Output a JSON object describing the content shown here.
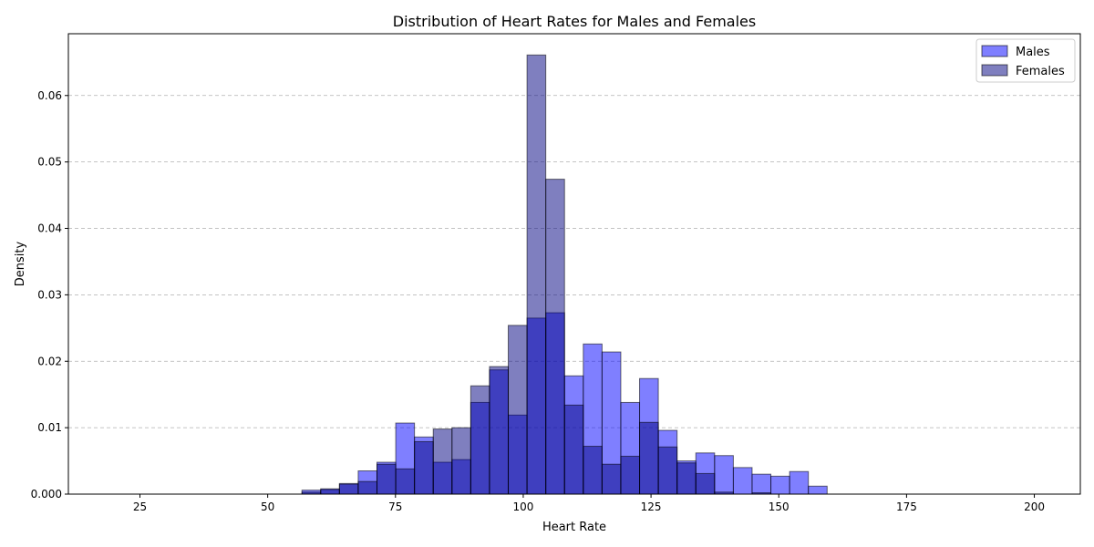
{
  "chart_data": {
    "type": "bar",
    "title": "Distribution of Heart Rates for Males and Females",
    "xlabel": "Heart Rate",
    "ylabel": "Density",
    "xlim": [
      11,
      209
    ],
    "ylim": [
      0,
      0.0693
    ],
    "x_ticks": [
      25,
      50,
      75,
      100,
      125,
      150,
      175,
      200
    ],
    "y_ticks": [
      0.0,
      0.01,
      0.02,
      0.03,
      0.04,
      0.05,
      0.06
    ],
    "y_tick_labels": [
      "0.000",
      "0.01",
      "0.02",
      "0.03",
      "0.04",
      "0.05",
      "0.06"
    ],
    "grid": "y-axis dashed",
    "legend_position": "top-right",
    "bin_start": 20,
    "bin_width": 3.67,
    "bin_count": 49,
    "series": [
      {
        "name": "Males",
        "color": "#0000ff",
        "opacity": 0.5,
        "values": [
          0,
          0,
          0,
          0,
          0,
          0,
          0,
          0,
          0,
          0,
          0.0006,
          0.0008,
          0.0016,
          0.0035,
          0.0048,
          0.0107,
          0.0086,
          0.0048,
          0.0052,
          0.0138,
          0.0187,
          0.0119,
          0.0265,
          0.0273,
          0.0178,
          0.0226,
          0.0214,
          0.0138,
          0.0174,
          0.0096,
          0.005,
          0.0062,
          0.0058,
          0.004,
          0.003,
          0.0027,
          0.0034,
          0.0012,
          0,
          0,
          0,
          0,
          0,
          0,
          0,
          0,
          0,
          0,
          0
        ]
      },
      {
        "name": "Females",
        "color": "#000080",
        "opacity": 0.5,
        "values": [
          0,
          0,
          0,
          0,
          0,
          0,
          0,
          0,
          0,
          0,
          0.0003,
          0.0007,
          0.0015,
          0.0019,
          0.0045,
          0.0038,
          0.0079,
          0.0098,
          0.01,
          0.0163,
          0.0192,
          0.0254,
          0.0661,
          0.0474,
          0.0134,
          0.0072,
          0.0045,
          0.0057,
          0.0108,
          0.0071,
          0.0047,
          0.0031,
          0.0003,
          0,
          0.0002,
          0,
          0,
          0,
          0,
          0,
          0,
          0,
          0,
          0,
          0,
          0,
          0,
          0,
          0
        ]
      }
    ]
  }
}
